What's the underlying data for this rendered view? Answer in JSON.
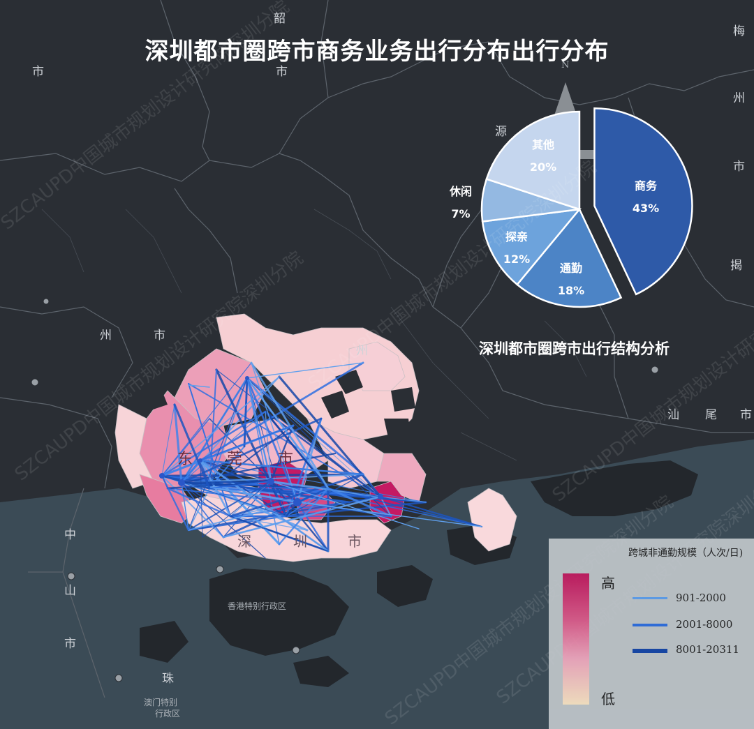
{
  "title": "深圳都市圈跨市商务业务出行分布出行分布",
  "pie": {
    "title": "深圳都市圈跨市出行结构分析",
    "chart_data": {
      "type": "pie",
      "categories": [
        "商务",
        "通勤",
        "探亲",
        "休闲",
        "其他"
      ],
      "values": [
        43,
        18,
        12,
        7,
        20
      ],
      "labels": [
        "43%",
        "18%",
        "12%",
        "7%",
        "20%"
      ],
      "colors": [
        "#2e5aa8",
        "#4c84c6",
        "#6da3dc",
        "#94b9e2",
        "#c5d6ee"
      ],
      "exploded": "商务"
    }
  },
  "legend": {
    "title": "跨城非通勤规模（人次/日)",
    "high": "高",
    "low": "低",
    "lines": [
      {
        "label": "901-2000",
        "color": "#5fa0ee"
      },
      {
        "label": "2001-8000",
        "color": "#2f6fe0"
      },
      {
        "label": "8001-20311",
        "color": "#1546a8"
      }
    ]
  },
  "map_labels": {
    "dongguan": [
      "东",
      "莞",
      "市"
    ],
    "shenzhen": [
      "深",
      "圳",
      "市"
    ],
    "guangzhou": [
      "州",
      "市"
    ],
    "huizhou": "州",
    "shanwei": [
      "汕",
      "尾",
      "市"
    ],
    "shaoguan": [
      "韶"
    ],
    "shanwei_top": [
      "市"
    ],
    "heyuan": "源",
    "meizhou": [
      "梅",
      "州",
      "市"
    ],
    "jieyang": "揭",
    "zhongshan": [
      "中",
      "山",
      "市"
    ],
    "zhuhai": "珠",
    "hongkong": "香港特别行政区",
    "macau": [
      "澳门特别",
      "行政区"
    ],
    "north": "N"
  },
  "watermark": "SZCAUPD中国城市规划设计研究院深圳分院"
}
